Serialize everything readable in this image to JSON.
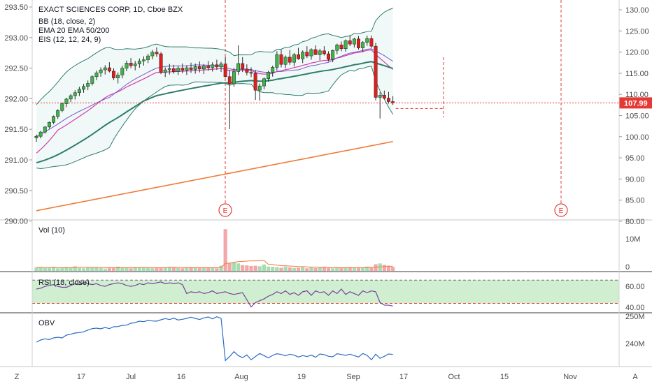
{
  "chart_data": {
    "type": "candlestick",
    "title": "EXACT SCIENCES CORP, 1D, Cboe BZX",
    "indicators": [
      "BB (18, close, 2)",
      "EMA 20 EMA 50/200",
      "EIS (12, 12, 24, 9)"
    ],
    "price_axis_left": {
      "ticks": [
        "293.50",
        "293.00",
        "292.50",
        "292.00",
        "291.50",
        "291.00",
        "290.50",
        "290.00"
      ],
      "range": [
        290.0,
        293.5
      ]
    },
    "price_axis_right": {
      "ticks": [
        "130.00",
        "125.00",
        "120.00",
        "115.00",
        "110.00",
        "105.00",
        "100.00",
        "95.00",
        "90.00",
        "85.00",
        "80.00"
      ],
      "range": [
        79.0,
        131.0
      ]
    },
    "last_price": "107.99",
    "last_price_color": "#e53935",
    "x_ticks": [
      "17",
      "Jul",
      "16",
      "Aug",
      "19",
      "Sep",
      "17",
      "Oct",
      "15",
      "Nov"
    ],
    "earnings_markers": [
      "E",
      "E"
    ],
    "candles": [
      [
        99.7,
        100.5,
        98.8,
        100.1
      ],
      [
        100.1,
        101.4,
        99.6,
        101.1
      ],
      [
        101.1,
        102.5,
        100.7,
        102.3
      ],
      [
        102.3,
        103.6,
        101.9,
        103.4
      ],
      [
        103.4,
        105.0,
        103.0,
        104.8
      ],
      [
        104.8,
        106.5,
        104.2,
        106.2
      ],
      [
        106.2,
        108.1,
        105.8,
        107.8
      ],
      [
        107.8,
        109.2,
        107.0,
        108.9
      ],
      [
        108.9,
        110.1,
        108.2,
        109.7
      ],
      [
        109.7,
        111.0,
        108.8,
        110.4
      ],
      [
        110.4,
        111.8,
        109.6,
        111.2
      ],
      [
        111.2,
        112.5,
        110.4,
        111.9
      ],
      [
        111.9,
        113.3,
        111.0,
        112.6
      ],
      [
        112.6,
        114.5,
        112.1,
        114.2
      ],
      [
        114.2,
        115.6,
        113.4,
        115.1
      ],
      [
        115.1,
        116.4,
        114.2,
        115.8
      ],
      [
        115.8,
        116.9,
        114.7,
        116.3
      ],
      [
        116.3,
        117.6,
        115.2,
        115.5
      ],
      [
        115.5,
        116.2,
        113.4,
        113.9
      ],
      [
        113.9,
        115.2,
        112.6,
        114.6
      ],
      [
        114.6,
        116.8,
        113.8,
        116.2
      ],
      [
        116.2,
        118.0,
        115.5,
        117.4
      ],
      [
        117.4,
        118.6,
        116.2,
        116.8
      ],
      [
        116.8,
        117.9,
        115.7,
        117.2
      ],
      [
        117.2,
        118.5,
        116.3,
        117.9
      ],
      [
        117.9,
        119.0,
        116.8,
        118.2
      ],
      [
        118.2,
        119.6,
        117.4,
        119.1
      ],
      [
        119.1,
        120.5,
        118.3,
        120.0
      ],
      [
        120.0,
        121.1,
        118.9,
        119.6
      ],
      [
        119.6,
        120.0,
        114.8,
        115.2
      ],
      [
        115.2,
        116.4,
        114.1,
        115.8
      ],
      [
        115.8,
        117.2,
        114.7,
        116.1
      ],
      [
        116.1,
        117.0,
        114.9,
        115.4
      ],
      [
        115.4,
        116.8,
        114.6,
        116.2
      ],
      [
        116.2,
        117.3,
        115.0,
        115.7
      ],
      [
        115.7,
        116.9,
        114.6,
        116.3
      ],
      [
        116.3,
        117.5,
        115.1,
        115.9
      ],
      [
        115.9,
        117.3,
        114.9,
        116.6
      ],
      [
        116.6,
        117.8,
        115.2,
        116.0
      ],
      [
        116.0,
        117.2,
        114.8,
        116.7
      ],
      [
        116.7,
        117.9,
        115.6,
        116.3
      ],
      [
        116.3,
        117.6,
        115.4,
        117.0
      ],
      [
        117.0,
        118.2,
        115.8,
        116.5
      ],
      [
        116.5,
        117.7,
        115.3,
        117.2
      ],
      [
        117.2,
        118.9,
        114.0,
        114.2
      ],
      [
        114.2,
        115.8,
        101.8,
        112.5
      ],
      [
        112.5,
        116.3,
        111.8,
        115.4
      ],
      [
        115.4,
        121.6,
        114.6,
        117.3
      ],
      [
        117.3,
        118.8,
        115.3,
        116.0
      ],
      [
        116.0,
        117.1,
        114.5,
        115.2
      ],
      [
        115.2,
        116.4,
        114.1,
        115.0
      ],
      [
        115.0,
        115.8,
        108.7,
        111.0
      ],
      [
        111.0,
        112.6,
        108.5,
        112.0
      ],
      [
        112.0,
        114.0,
        111.2,
        113.7
      ],
      [
        113.7,
        115.6,
        113.0,
        115.2
      ],
      [
        115.2,
        116.8,
        114.2,
        116.4
      ],
      [
        116.4,
        120.2,
        115.6,
        119.4
      ],
      [
        119.4,
        120.6,
        116.4,
        117.1
      ],
      [
        117.1,
        119.2,
        116.2,
        118.8
      ],
      [
        118.8,
        120.5,
        117.0,
        117.6
      ],
      [
        117.6,
        119.8,
        116.6,
        119.4
      ],
      [
        119.4,
        121.0,
        118.2,
        118.4
      ],
      [
        118.4,
        120.4,
        117.4,
        120.0
      ],
      [
        120.0,
        121.4,
        118.6,
        119.1
      ],
      [
        119.1,
        120.9,
        118.2,
        120.6
      ],
      [
        120.6,
        121.6,
        119.3,
        119.4
      ],
      [
        119.4,
        120.8,
        118.0,
        120.3
      ],
      [
        120.3,
        121.4,
        119.2,
        119.6
      ],
      [
        119.6,
        120.2,
        117.8,
        118.3
      ],
      [
        118.3,
        120.6,
        117.6,
        120.4
      ],
      [
        120.4,
        122.0,
        119.5,
        121.7
      ],
      [
        121.7,
        122.5,
        120.2,
        120.8
      ],
      [
        120.8,
        123.0,
        120.1,
        122.7
      ],
      [
        122.7,
        124.0,
        121.4,
        121.9
      ],
      [
        121.9,
        123.4,
        121.1,
        123.1
      ],
      [
        123.1,
        123.8,
        120.6,
        121.0
      ],
      [
        121.0,
        122.6,
        120.0,
        122.3
      ],
      [
        122.3,
        123.9,
        121.5,
        123.2
      ],
      [
        123.2,
        123.9,
        121.0,
        121.4
      ],
      [
        121.4,
        122.2,
        108.6,
        109.3
      ],
      [
        109.3,
        110.5,
        104.3,
        109.8
      ],
      [
        109.8,
        110.9,
        108.8,
        109.1
      ],
      [
        109.1,
        110.6,
        107.8,
        108.3
      ],
      [
        108.3,
        109.6,
        107.5,
        107.99
      ]
    ],
    "volume": {
      "label": "Vol (10)",
      "axis_ticks": [
        "10M",
        "0"
      ],
      "values": [
        1.2,
        1.1,
        1.0,
        1.0,
        1.4,
        0.9,
        1.0,
        1.3,
        1.1,
        1.6,
        1.0,
        0.9,
        1.2,
        1.1,
        1.3,
        1.0,
        0.8,
        1.0,
        1.2,
        1.5,
        1.1,
        1.0,
        0.9,
        1.3,
        1.2,
        1.1,
        1.0,
        0.9,
        1.2,
        1.0,
        1.1,
        1.4,
        1.2,
        1.0,
        0.9,
        1.1,
        1.3,
        1.2,
        1.0,
        1.1,
        1.2,
        1.0,
        0.9,
        1.8,
        14.5,
        2.8,
        3.1,
        2.6,
        2.0,
        1.9,
        1.7,
        1.8,
        1.6,
        2.2,
        1.5,
        1.4,
        1.3,
        1.1,
        1.5,
        1.2,
        1.0,
        1.1,
        1.3,
        0.9,
        1.2,
        1.0,
        1.1,
        1.4,
        1.0,
        0.9,
        1.2,
        1.1,
        1.0,
        1.3,
        1.1,
        1.0,
        1.2,
        1.5,
        1.1,
        2.3,
        2.6,
        2.1,
        1.8,
        1.4
      ],
      "ma": [
        1.2,
        1.2,
        1.2,
        1.1,
        1.2,
        1.1,
        1.1,
        1.1,
        1.1,
        1.2,
        1.2,
        1.2,
        1.2,
        1.2,
        1.2,
        1.2,
        1.1,
        1.1,
        1.1,
        1.1,
        1.1,
        1.1,
        1.1,
        1.1,
        1.2,
        1.2,
        1.1,
        1.1,
        1.1,
        1.1,
        1.1,
        1.2,
        1.2,
        1.2,
        1.1,
        1.1,
        1.1,
        1.1,
        1.1,
        1.1,
        1.1,
        1.1,
        1.1,
        1.2,
        2.6,
        2.7,
        3.0,
        3.2,
        3.3,
        3.4,
        3.5,
        3.5,
        3.5,
        3.6,
        2.3,
        2.2,
        2.0,
        1.8,
        1.8,
        1.7,
        1.6,
        1.5,
        1.5,
        1.4,
        1.3,
        1.3,
        1.2,
        1.2,
        1.1,
        1.1,
        1.1,
        1.1,
        1.1,
        1.1,
        1.1,
        1.1,
        1.1,
        1.2,
        1.2,
        1.3,
        1.4,
        1.5,
        1.6,
        1.6
      ]
    },
    "rsi": {
      "label": "RSI (18, close)",
      "axis_ticks": [
        "60.00",
        "40.00"
      ],
      "band": [
        44,
        70
      ],
      "values": [
        60,
        61,
        63,
        64,
        65,
        63,
        62,
        62,
        64,
        66,
        65,
        67,
        66,
        65,
        66,
        64,
        63,
        65,
        66,
        67,
        66,
        64,
        63,
        64,
        66,
        65,
        67,
        66,
        67,
        68,
        66,
        67,
        66,
        67,
        65,
        55,
        57,
        56,
        57,
        55,
        56,
        58,
        55,
        56,
        57,
        55,
        54,
        55,
        56,
        48,
        40,
        45,
        47,
        49,
        52,
        54,
        57,
        55,
        58,
        54,
        56,
        53,
        57,
        58,
        53,
        58,
        56,
        57,
        53,
        58,
        55,
        60,
        54,
        57,
        55,
        53,
        58,
        56,
        58,
        57,
        45,
        42,
        42,
        41
      ]
    },
    "obv": {
      "label": "OBV",
      "axis_ticks": [
        "250M",
        "240M"
      ],
      "values": [
        239.2,
        240.1,
        240.6,
        240.3,
        241.0,
        241.3,
        241.0,
        242.2,
        242.6,
        243.1,
        243.3,
        243.6,
        244.4,
        245.0,
        245.2,
        244.9,
        245.5,
        245.0,
        245.8,
        245.9,
        246.4,
        246.5,
        247.3,
        247.6,
        248.2,
        248.0,
        248.5,
        248.3,
        248.2,
        248.8,
        249.3,
        248.9,
        249.5,
        248.7,
        249.0,
        249.4,
        249.9,
        249.4,
        248.9,
        249.6,
        250.0,
        249.2,
        250.1,
        249.4,
        231.3,
        233.0,
        235.1,
        233.4,
        232.5,
        233.7,
        231.6,
        233.0,
        234.3,
        233.4,
        232.4,
        233.5,
        234.2,
        233.9,
        233.3,
        234.0,
        233.6,
        232.8,
        233.4,
        233.0,
        233.6,
        232.7,
        234.1,
        233.8,
        233.1,
        232.9,
        234.2,
        233.9,
        233.5,
        234.0,
        233.4,
        232.8,
        234.3,
        233.5,
        231.6,
        234.0,
        232.2,
        233.1,
        234.1,
        233.9
      ]
    },
    "x_axis_corner_labels": [
      "Z",
      "A"
    ]
  }
}
